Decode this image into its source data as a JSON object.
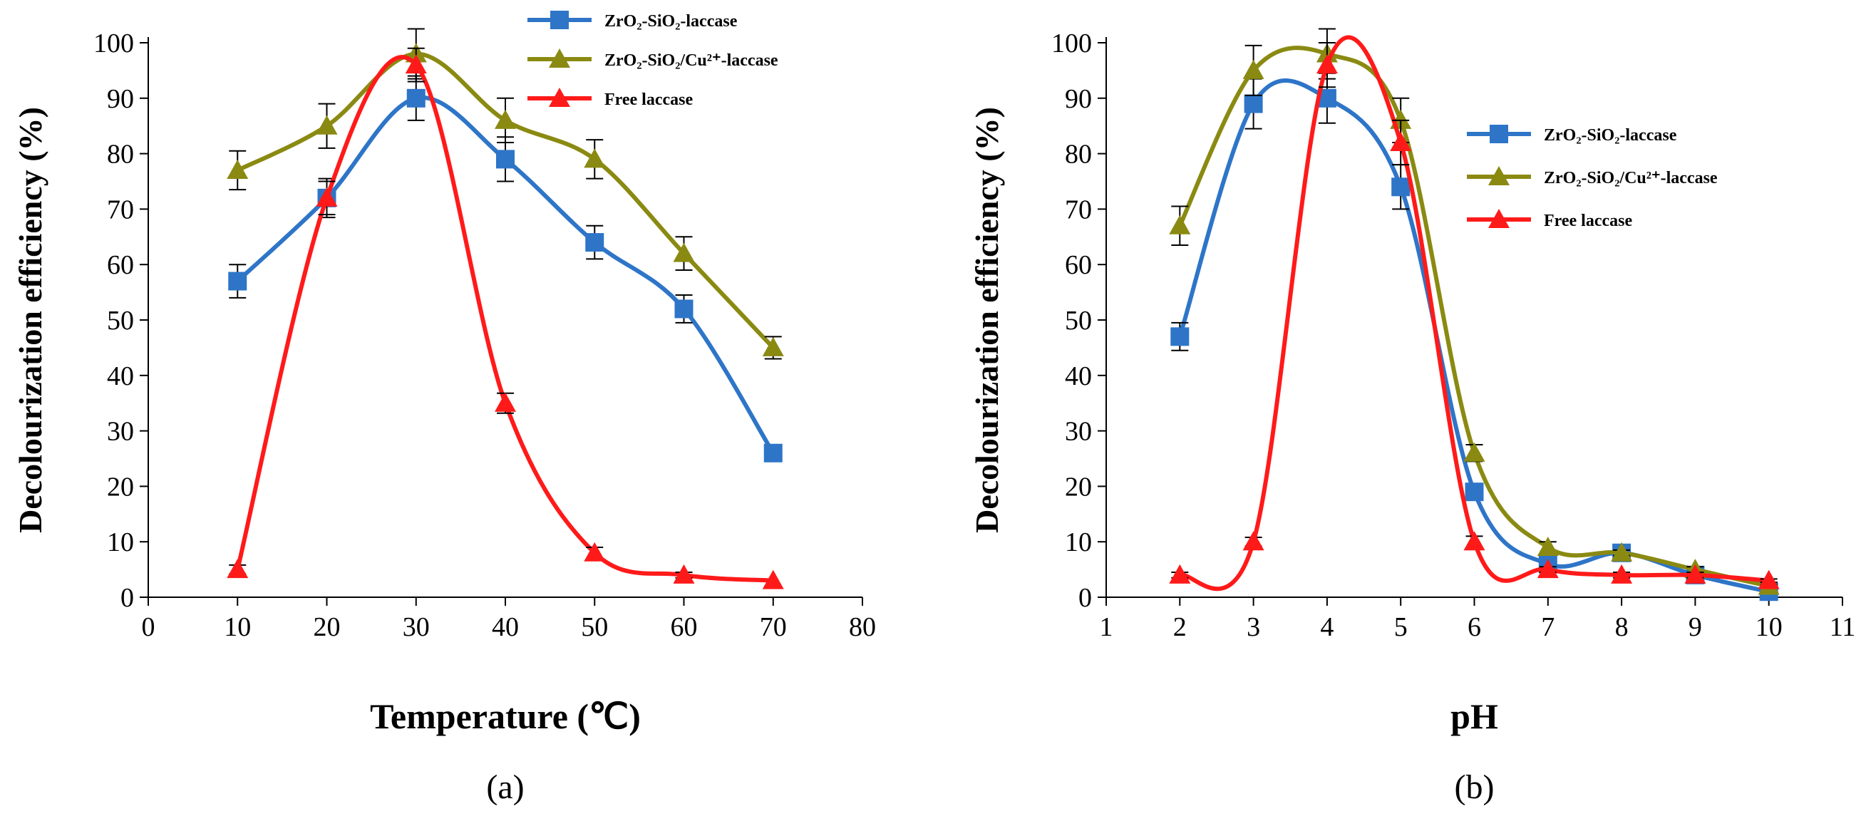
{
  "chart_data": [
    {
      "type": "line",
      "panel_label": "(a)",
      "xlabel": "Temperature (℃)",
      "ylabel": "Decolourization efficiency (%)",
      "xlim": [
        0,
        80
      ],
      "ylim": [
        0,
        100
      ],
      "x_ticks": [
        "0",
        "10",
        "20",
        "30",
        "40",
        "50",
        "60",
        "70",
        "80"
      ],
      "y_ticks": [
        "0",
        "10",
        "20",
        "30",
        "40",
        "50",
        "60",
        "70",
        "80",
        "90",
        "100"
      ],
      "legend_position": "top-right",
      "series": [
        {
          "name": "ZrO₂-SiO₂-laccase",
          "color": "#2E75C8",
          "marker": "square",
          "x": [
            10,
            20,
            30,
            40,
            50,
            60,
            70
          ],
          "y": [
            57,
            72,
            90,
            79,
            64,
            52,
            26
          ],
          "err": [
            3,
            3.5,
            4,
            4,
            3,
            2.5,
            0
          ]
        },
        {
          "name": "ZrO₂-SiO₂/Cu²⁺-laccase",
          "color": "#8A8A12",
          "marker": "triangle",
          "x": [
            10,
            20,
            30,
            40,
            50,
            60,
            70
          ],
          "y": [
            77,
            85,
            98,
            86,
            79,
            62,
            45
          ],
          "err": [
            3.5,
            4,
            4.5,
            4,
            3.5,
            3,
            2
          ]
        },
        {
          "name": "Free laccase",
          "color": "#FF1A1A",
          "marker": "triangle",
          "x": [
            10,
            20,
            30,
            40,
            50,
            60,
            70
          ],
          "y": [
            5,
            72,
            96,
            35,
            8,
            4,
            3
          ],
          "err": [
            0.8,
            3,
            3,
            1.8,
            1,
            0.5,
            0
          ]
        }
      ]
    },
    {
      "type": "line",
      "panel_label": "(b)",
      "xlabel": "pH",
      "ylabel": "Decolourization efficiency (%)",
      "xlim": [
        1,
        11
      ],
      "ylim": [
        0,
        100
      ],
      "x_ticks": [
        "1",
        "2",
        "3",
        "4",
        "5",
        "6",
        "7",
        "8",
        "9",
        "10",
        "11"
      ],
      "y_ticks": [
        "0",
        "10",
        "20",
        "30",
        "40",
        "50",
        "60",
        "70",
        "80",
        "90",
        "100"
      ],
      "legend_position": "right",
      "series": [
        {
          "name": "ZrO₂-SiO₂-laccase",
          "color": "#2E75C8",
          "marker": "square",
          "x": [
            2,
            3,
            4,
            5,
            6,
            7,
            8,
            9,
            10
          ],
          "y": [
            47,
            89,
            90,
            74,
            19,
            6,
            8,
            4,
            1
          ],
          "err": [
            2.5,
            4.5,
            4.5,
            4,
            1.5,
            1,
            0.5,
            0.5,
            0.3
          ]
        },
        {
          "name": "ZrO₂-SiO₂/Cu²⁺-laccase",
          "color": "#8A8A12",
          "marker": "triangle",
          "x": [
            2,
            3,
            4,
            5,
            6,
            7,
            8,
            9,
            10
          ],
          "y": [
            67,
            95,
            98,
            86,
            26,
            9,
            8,
            5,
            2
          ],
          "err": [
            3.5,
            4.5,
            4.5,
            4,
            1.5,
            1,
            0.5,
            0.5,
            0.3
          ]
        },
        {
          "name": "Free laccase",
          "color": "#FF1A1A",
          "marker": "triangle",
          "x": [
            2,
            3,
            4,
            5,
            6,
            7,
            8,
            9,
            10
          ],
          "y": [
            4,
            10,
            96,
            82,
            10,
            5,
            4,
            4,
            3
          ],
          "err": [
            0.5,
            0.8,
            4,
            4,
            1,
            0.5,
            0.5,
            0.5,
            0.3
          ]
        }
      ]
    }
  ]
}
